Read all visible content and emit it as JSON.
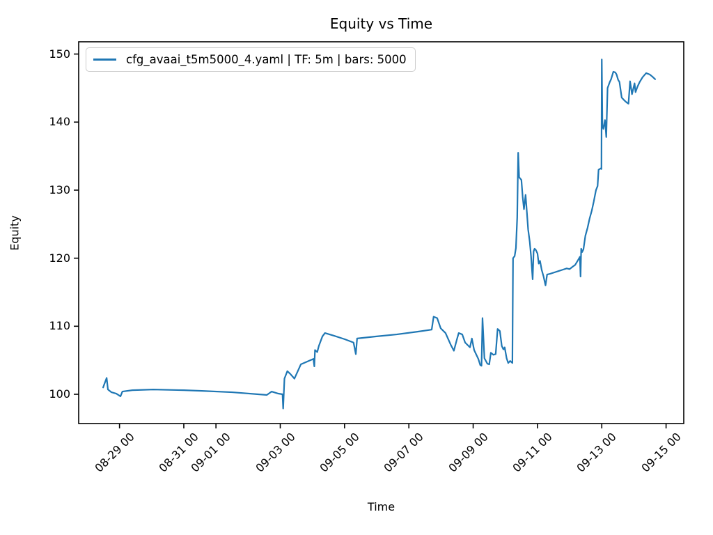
{
  "chart_data": {
    "type": "line",
    "title": "Equity vs Time",
    "xlabel": "Time",
    "ylabel": "Equity",
    "legend_position": "upper left",
    "grid": false,
    "background_color": "#ffffff",
    "spine_color": "#000000",
    "x_unit": "days since 08-28 00:00",
    "xlim": [
      -0.27,
      18.55
    ],
    "ylim": [
      95.7,
      151.8
    ],
    "y_ticks": [
      100,
      110,
      120,
      130,
      140,
      150
    ],
    "x_ticks": [
      {
        "day": 1,
        "label": "08-29 00"
      },
      {
        "day": 3,
        "label": "08-31 00"
      },
      {
        "day": 4,
        "label": "09-01 00"
      },
      {
        "day": 6,
        "label": "09-03 00"
      },
      {
        "day": 8,
        "label": "09-05 00"
      },
      {
        "day": 10,
        "label": "09-07 00"
      },
      {
        "day": 12,
        "label": "09-09 00"
      },
      {
        "day": 14,
        "label": "09-11 00"
      },
      {
        "day": 16,
        "label": "09-13 00"
      },
      {
        "day": 18,
        "label": "09-15 00"
      }
    ],
    "series": [
      {
        "name": "cfg_avaai_t5m5000_4.yaml | TF: 5m | bars: 5000",
        "color": "#1f77b4",
        "line_width": 2.2,
        "points": [
          [
            0.49,
            101.0
          ],
          [
            0.52,
            101.4
          ],
          [
            0.6,
            102.4
          ],
          [
            0.64,
            100.7
          ],
          [
            0.75,
            100.3
          ],
          [
            0.9,
            100.1
          ],
          [
            1.03,
            99.7
          ],
          [
            1.09,
            100.4
          ],
          [
            1.4,
            100.6
          ],
          [
            2.05,
            100.7
          ],
          [
            3.0,
            100.6
          ],
          [
            3.56,
            100.5
          ],
          [
            4.5,
            100.3
          ],
          [
            5.58,
            99.9
          ],
          [
            5.73,
            100.4
          ],
          [
            5.94,
            100.1
          ],
          [
            6.07,
            100.0
          ],
          [
            6.09,
            97.9
          ],
          [
            6.13,
            102.3
          ],
          [
            6.22,
            103.4
          ],
          [
            6.31,
            103.0
          ],
          [
            6.44,
            102.3
          ],
          [
            6.64,
            104.4
          ],
          [
            7.03,
            105.2
          ],
          [
            7.06,
            104.1
          ],
          [
            7.08,
            106.5
          ],
          [
            7.15,
            106.2
          ],
          [
            7.2,
            107.1
          ],
          [
            7.31,
            108.5
          ],
          [
            7.39,
            109.0
          ],
          [
            7.67,
            108.6
          ],
          [
            8.0,
            108.1
          ],
          [
            8.28,
            107.6
          ],
          [
            8.35,
            105.9
          ],
          [
            8.39,
            108.2
          ],
          [
            8.97,
            108.5
          ],
          [
            9.62,
            108.8
          ],
          [
            10.27,
            109.2
          ],
          [
            10.71,
            109.5
          ],
          [
            10.77,
            111.4
          ],
          [
            10.88,
            111.2
          ],
          [
            10.99,
            109.7
          ],
          [
            11.14,
            109.0
          ],
          [
            11.31,
            107.2
          ],
          [
            11.4,
            106.4
          ],
          [
            11.49,
            108.0
          ],
          [
            11.55,
            109.0
          ],
          [
            11.66,
            108.8
          ],
          [
            11.75,
            107.6
          ],
          [
            11.9,
            106.9
          ],
          [
            11.96,
            108.2
          ],
          [
            12.03,
            106.5
          ],
          [
            12.09,
            105.9
          ],
          [
            12.16,
            105.2
          ],
          [
            12.22,
            104.3
          ],
          [
            12.26,
            104.2
          ],
          [
            12.29,
            111.2
          ],
          [
            12.35,
            105.3
          ],
          [
            12.44,
            104.5
          ],
          [
            12.5,
            104.4
          ],
          [
            12.55,
            106.1
          ],
          [
            12.63,
            105.8
          ],
          [
            12.7,
            105.9
          ],
          [
            12.76,
            109.6
          ],
          [
            12.83,
            109.3
          ],
          [
            12.89,
            107.1
          ],
          [
            12.94,
            106.6
          ],
          [
            12.98,
            106.9
          ],
          [
            13.04,
            105.3
          ],
          [
            13.09,
            104.6
          ],
          [
            13.15,
            104.9
          ],
          [
            13.22,
            104.6
          ],
          [
            13.24,
            120.0
          ],
          [
            13.29,
            120.3
          ],
          [
            13.33,
            121.5
          ],
          [
            13.37,
            126.0
          ],
          [
            13.4,
            135.5
          ],
          [
            13.43,
            131.9
          ],
          [
            13.5,
            131.5
          ],
          [
            13.54,
            129.0
          ],
          [
            13.58,
            127.2
          ],
          [
            13.63,
            129.3
          ],
          [
            13.67,
            126.8
          ],
          [
            13.71,
            124.2
          ],
          [
            13.76,
            122.4
          ],
          [
            13.8,
            120.3
          ],
          [
            13.85,
            116.9
          ],
          [
            13.88,
            121.0
          ],
          [
            13.91,
            121.4
          ],
          [
            13.95,
            121.2
          ],
          [
            14.0,
            120.7
          ],
          [
            14.04,
            119.2
          ],
          [
            14.08,
            119.6
          ],
          [
            14.13,
            118.3
          ],
          [
            14.19,
            117.3
          ],
          [
            14.25,
            116.0
          ],
          [
            14.3,
            117.6
          ],
          [
            14.39,
            117.7
          ],
          [
            14.52,
            117.9
          ],
          [
            14.65,
            118.1
          ],
          [
            14.78,
            118.3
          ],
          [
            14.91,
            118.5
          ],
          [
            15.0,
            118.4
          ],
          [
            15.08,
            118.7
          ],
          [
            15.17,
            119.0
          ],
          [
            15.26,
            119.7
          ],
          [
            15.32,
            120.2
          ],
          [
            15.34,
            117.3
          ],
          [
            15.36,
            121.4
          ],
          [
            15.39,
            120.9
          ],
          [
            15.43,
            121.3
          ],
          [
            15.49,
            123.3
          ],
          [
            15.56,
            124.5
          ],
          [
            15.62,
            125.8
          ],
          [
            15.69,
            127.0
          ],
          [
            15.75,
            128.3
          ],
          [
            15.82,
            130.0
          ],
          [
            15.87,
            130.6
          ],
          [
            15.9,
            133.0
          ],
          [
            15.97,
            133.2
          ],
          [
            15.99,
            133.1
          ],
          [
            16.0,
            149.2
          ],
          [
            16.02,
            139.5
          ],
          [
            16.05,
            139.0
          ],
          [
            16.1,
            140.3
          ],
          [
            16.14,
            137.8
          ],
          [
            16.18,
            145.0
          ],
          [
            16.25,
            145.9
          ],
          [
            16.29,
            146.3
          ],
          [
            16.36,
            147.4
          ],
          [
            16.42,
            147.3
          ],
          [
            16.46,
            147.0
          ],
          [
            16.51,
            146.2
          ],
          [
            16.55,
            145.9
          ],
          [
            16.62,
            143.6
          ],
          [
            16.7,
            143.2
          ],
          [
            16.77,
            142.9
          ],
          [
            16.83,
            142.7
          ],
          [
            16.88,
            146.0
          ],
          [
            16.94,
            144.1
          ],
          [
            17.02,
            145.7
          ],
          [
            17.05,
            144.4
          ],
          [
            17.11,
            145.2
          ],
          [
            17.18,
            145.9
          ],
          [
            17.27,
            146.6
          ],
          [
            17.38,
            147.2
          ],
          [
            17.49,
            147.0
          ],
          [
            17.57,
            146.7
          ],
          [
            17.66,
            146.3
          ]
        ]
      }
    ]
  }
}
